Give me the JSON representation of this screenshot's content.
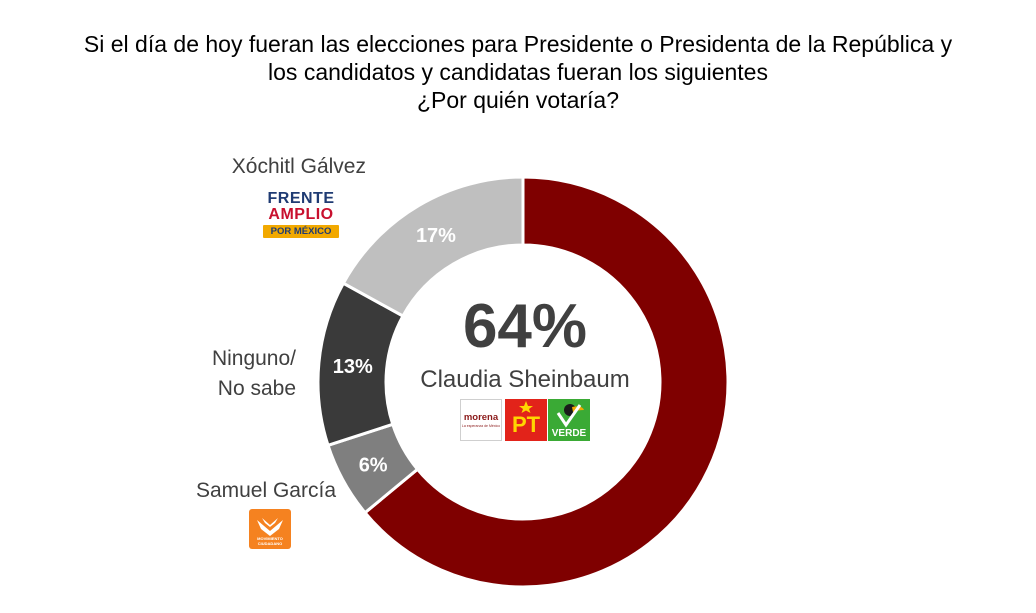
{
  "title": {
    "line1": "Si el día de hoy fueran las elecciones para Presidente o Presidenta de la República y",
    "line2": "los candidatos y candidatas fueran los siguientes",
    "line3": "¿Por quién votaría?"
  },
  "chart_data": {
    "type": "pie",
    "style": "donut",
    "start": "top",
    "direction": "clockwise",
    "categories": [
      "Claudia Sheinbaum",
      "Samuel García",
      "Ninguno/ No sabe",
      "Xóchitl Gálvez"
    ],
    "values": [
      64,
      6,
      13,
      17
    ],
    "unit": "%",
    "colors": [
      "#7f0000",
      "#7f7f7f",
      "#3a3a3a",
      "#bfbfbf"
    ],
    "slice_labels": [
      "64%",
      "6%",
      "13%",
      "17%"
    ],
    "center": {
      "value": "64%",
      "name": "Claudia Sheinbaum"
    },
    "legend": {
      "xochitl": "Xóchitl Gálvez",
      "ninguno_line1": "Ninguno/",
      "ninguno_line2": "No sabe",
      "samuel": "Samuel García"
    }
  },
  "logos": {
    "frente_line1": "FRENTE",
    "frente_line2": "AMPLIO",
    "frente_line3": "POR MÉXICO",
    "mc": "MOVIMIENTO CIUDADANO",
    "morena": "morena",
    "morena_tagline": "La esperanza de México",
    "pt": "PT",
    "verde": "VERDE",
    "colors": {
      "frente_blue": "#1f3b73",
      "frente_red": "#c8102e",
      "frente_gold": "#f2a900",
      "mc_orange": "#f58220",
      "morena": "#8b1a1a",
      "pt_red": "#e2231a",
      "pt_yellow": "#ffd600",
      "verde_green": "#3aaa35"
    },
    "icons": [
      "eagle-icon",
      "star-icon",
      "toucan-icon"
    ]
  }
}
